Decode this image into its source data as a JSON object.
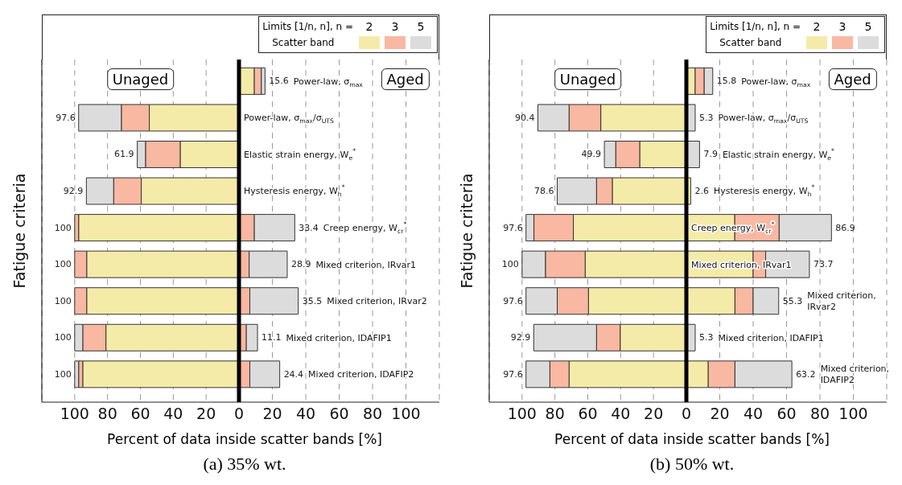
{
  "chart_data": [
    {
      "type": "bar",
      "orientation": "horizontal",
      "stacked": true,
      "title": "(a) 35% wt.",
      "xlabel": "Percent of data inside scatter bands [%]",
      "ylabel": "Fatigue criteria",
      "grid": "x",
      "tick_labels": "x",
      "categories": [
        null,
        null,
        null,
        null,
        null,
        null,
        null,
        null,
        null
      ],
      "xlim": [
        120,
        0
      ],
      "xticks": [
        100,
        80,
        60,
        40,
        20
      ],
      "annotations": [
        "Unaged"
      ],
      "series": [
        {
          "color": "#f5eba8",
          "values": [
            null,
            54.6,
            35.8,
            59.5,
            97.6,
            92.7,
            92.7,
            81,
            95.1
          ]
        },
        {
          "color": "#f9b8a2",
          "values": [
            null,
            17,
            21.1,
            16.8,
            2.4,
            7.3,
            7.3,
            14.1,
            2.5
          ]
        },
        {
          "color": "#dcdcdc",
          "values": [
            null,
            26,
            5,
            16.6,
            null,
            null,
            null,
            4.9,
            2.4
          ]
        }
      ],
      "totals": [
        null,
        "97.6",
        "61.9",
        "92.9",
        "100",
        "100",
        "100",
        "100",
        "100"
      ]
    },
    {
      "type": "bar",
      "orientation": "horizontal",
      "stacked": true,
      "legend_title": "Limits [1/n, n], n =",
      "legend": "top right",
      "grid": "x",
      "categories": [
        "Power-law, σ$_{max}$",
        "Power-law, σ$_{max}$/σ$_{UTS}$",
        "Elastic strain energy, W$_{e}$$^{*}$",
        "Hysteresis energy, W$_{h}$$^{*}$",
        "Creep energy, W$_{cr}$$^{*}$",
        "Mixed criterion, IRvar1",
        "Mixed criterion, IRvar2",
        "Mixed criterion, IDAFIP1",
        "Mixed criterion, IDAFIP2"
      ],
      "xlim": [
        0,
        120
      ],
      "xticks": [
        0,
        20,
        40,
        60,
        80,
        100
      ],
      "annotations": [
        "Aged",
        "Scatter band"
      ],
      "series": [
        {
          "name": "2",
          "color": "#f5eba8",
          "values": [
            9.2,
            null,
            null,
            null,
            null,
            null,
            null,
            null,
            null
          ]
        },
        {
          "name": "3",
          "color": "#f9b8a2",
          "values": [
            4.2,
            null,
            null,
            null,
            9.2,
            6.1,
            6.5,
            4.4,
            6.5
          ]
        },
        {
          "name": "5",
          "color": "#dcdcdc",
          "values": [
            2.2,
            null,
            null,
            null,
            24.2,
            22.8,
            29,
            6.7,
            17.9
          ]
        }
      ],
      "totals": [
        "15.6",
        null,
        null,
        null,
        "33.4",
        "28.9",
        "35.5",
        "11.1",
        "24.4"
      ]
    },
    {
      "type": "bar",
      "orientation": "horizontal",
      "stacked": true,
      "title": "(b) 50% wt.",
      "xlabel": "Percent of data inside scatter bands [%]",
      "ylabel": "Fatigue criteria",
      "grid": "x",
      "tick_labels": "x",
      "categories": [
        null,
        null,
        null,
        null,
        null,
        null,
        null,
        null,
        null
      ],
      "xlim": [
        120,
        0
      ],
      "xticks": [
        100,
        80,
        60,
        40,
        20
      ],
      "annotations": [
        "Unaged"
      ],
      "series": [
        {
          "color": "#f5eba8",
          "values": [
            null,
            52.1,
            28.4,
            45.1,
            68.8,
            61.6,
            59.6,
            40.3,
            71.4
          ]
        },
        {
          "color": "#f9b8a2",
          "values": [
            null,
            19.3,
            14.6,
            9.6,
            24,
            24.2,
            19,
            14.4,
            11.7
          ]
        },
        {
          "color": "#dcdcdc",
          "values": [
            null,
            19,
            6.9,
            23.9,
            4.8,
            14.2,
            19,
            38.2,
            14.5
          ]
        }
      ],
      "totals": [
        null,
        "90.4",
        "49.9",
        "78.6",
        "97.6",
        "100",
        "97.6",
        "92.9",
        "97.6"
      ]
    },
    {
      "type": "bar",
      "orientation": "horizontal",
      "stacked": true,
      "legend_title": "Limits [1/n, n], n =",
      "legend": "top right",
      "grid": "x",
      "categories": [
        "Power-law, σ$_{max}$",
        "Power-law, σ$_{max}$/σ$_{UTS}$",
        "Elastic strain energy, W$_{e}$$^{*}$",
        "Hysteresis energy, W$_{h}$$^{*}$",
        "Creep energy, W$_{cr}$$^{*}$",
        "Mixed criterion, IRvar1",
        "Mixed criterion, IRvar2",
        "Mixed criterion, IDAFIP1",
        "Mixed criterion, IDAFIP2"
      ],
      "xlim": [
        0,
        120
      ],
      "xticks": [
        0,
        20,
        40,
        60,
        80,
        100
      ],
      "annotations": [
        "Aged",
        "Scatter band"
      ],
      "series": [
        {
          "name": "2",
          "color": "#f5eba8",
          "values": [
            5.3,
            null,
            null,
            2.6,
            29,
            40,
            29.1,
            null,
            13.1
          ]
        },
        {
          "name": "3",
          "color": "#f9b8a2",
          "values": [
            5.4,
            null,
            null,
            null,
            26.6,
            7.5,
            10.9,
            null,
            16
          ]
        },
        {
          "name": "5",
          "color": "#dcdcdc",
          "values": [
            5.1,
            5.3,
            7.9,
            null,
            31.3,
            26.2,
            15.3,
            5.3,
            34.1
          ]
        }
      ],
      "totals": [
        "15.8",
        "5.3",
        "7.9",
        "2.6",
        "86.9",
        "73.7",
        "55.3",
        "5.3",
        "63.2"
      ]
    }
  ]
}
